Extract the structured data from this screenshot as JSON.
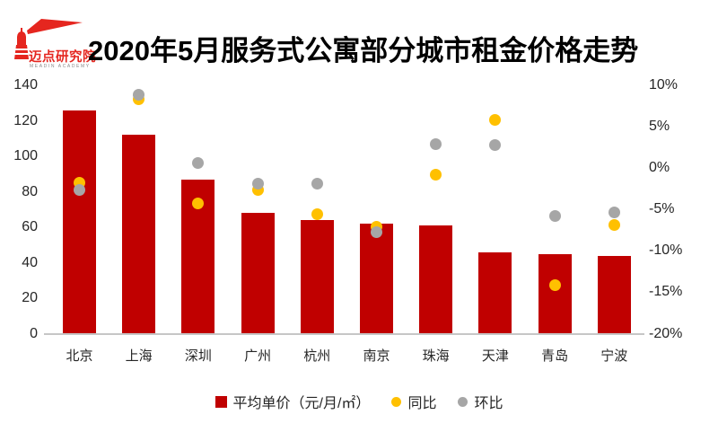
{
  "header": {
    "logo": {
      "brand_cn": "迈点研究院",
      "brand_en": "MEADIN ACADEMY"
    },
    "title": "2020年5月服务式公寓部分城市租金价格走势"
  },
  "colors": {
    "bar_red": "#C00000",
    "yoy_yellow": "#FFC000",
    "mom_gray": "#A6A6A6",
    "brand_red": "#E5261F",
    "axis_line": "#C6C6C6",
    "text": "#262626"
  },
  "chart_data": {
    "type": "bar",
    "title": "2020年5月服务式公寓部分城市租金价格走势",
    "categories": [
      "北京",
      "上海",
      "深圳",
      "广州",
      "杭州",
      "南京",
      "珠海",
      "天津",
      "青岛",
      "宁波"
    ],
    "series": [
      {
        "name": "平均单价（元/月/㎡）",
        "type": "bar",
        "axis": "left",
        "color": "#C00000",
        "values": [
          126,
          112,
          87,
          68,
          64,
          62,
          61,
          46,
          45,
          44
        ]
      },
      {
        "name": "同比",
        "type": "scatter",
        "axis": "right",
        "color": "#FFC000",
        "values": [
          -1.8,
          8.3,
          -4.3,
          -2.6,
          -5.6,
          -7.1,
          -0.8,
          5.8,
          -14.1,
          -6.9
        ]
      },
      {
        "name": "环比",
        "type": "scatter",
        "axis": "right",
        "color": "#A6A6A6",
        "values": [
          -2.6,
          8.9,
          0.6,
          -1.9,
          -1.9,
          -7.7,
          2.9,
          2.8,
          -5.8,
          -5.3
        ]
      }
    ],
    "left_axis": {
      "min": 0,
      "max": 140,
      "tick_labels": [
        "140",
        "120",
        "100",
        "80",
        "60",
        "40",
        "20",
        "0"
      ],
      "tick_values": [
        140,
        120,
        100,
        80,
        60,
        40,
        20,
        0
      ]
    },
    "right_axis": {
      "min": -20,
      "max": 10,
      "tick_labels": [
        "10%",
        "5%",
        "0%",
        "-5%",
        "-10%",
        "-15%",
        "-20%"
      ],
      "tick_values": [
        10,
        5,
        0,
        -5,
        -10,
        -15,
        -20
      ],
      "unit": "%"
    },
    "grid": false,
    "legend_position": "bottom"
  }
}
